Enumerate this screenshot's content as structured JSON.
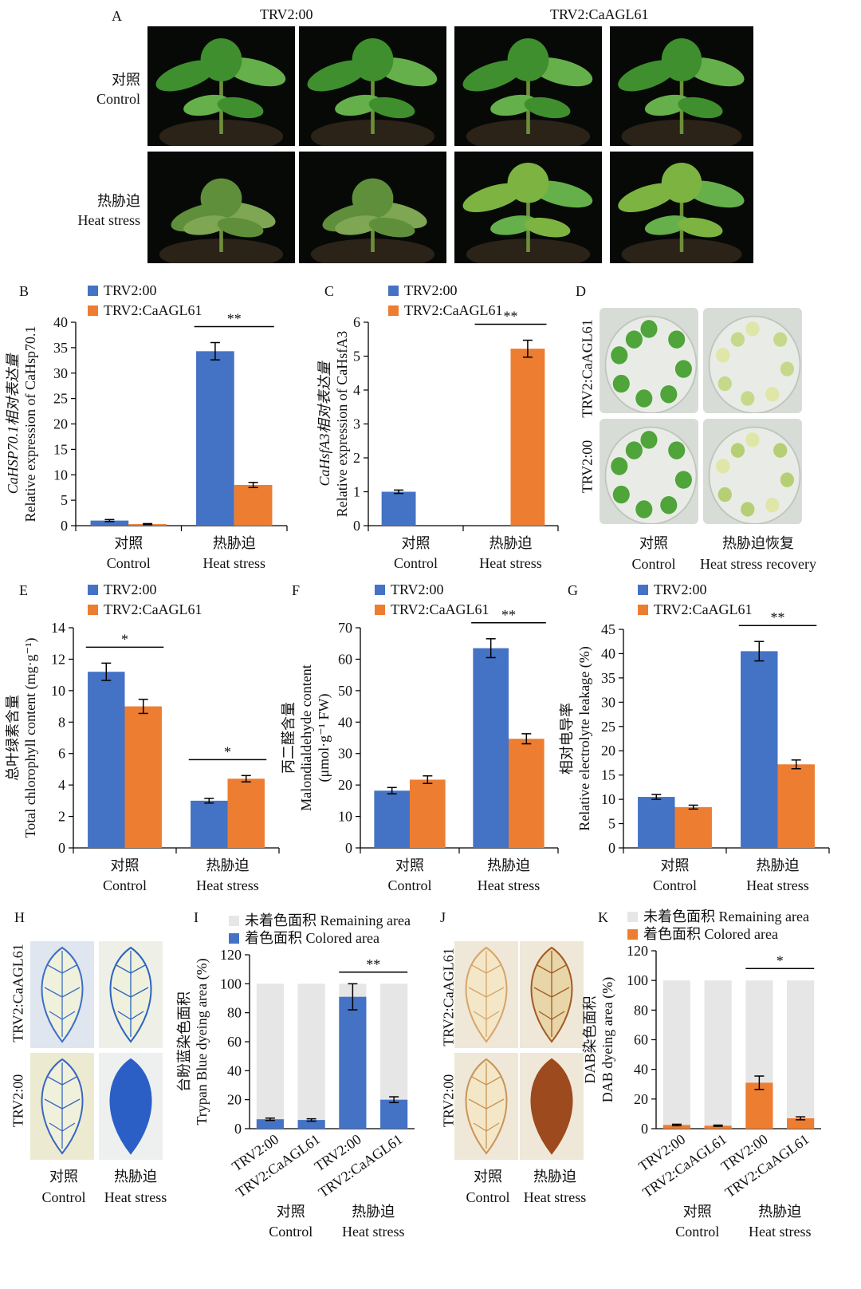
{
  "colors": {
    "blue": "#4472C4",
    "orange": "#ED7D31",
    "gray": "#E6E6E6",
    "photo_bg": "#070907"
  },
  "panel_letters": [
    "A",
    "B",
    "C",
    "D",
    "E",
    "F",
    "G",
    "H",
    "I",
    "J",
    "K"
  ],
  "panelA": {
    "col_labels": [
      "TRV2:00",
      "TRV2:CaAGL61"
    ],
    "row_labels": [
      [
        "对照",
        "Control"
      ],
      [
        "热胁迫",
        "Heat stress"
      ]
    ]
  },
  "panelD": {
    "row_labels": [
      "TRV2:CaAGL61",
      "TRV2:00"
    ],
    "col_labels": [
      [
        "对照",
        "Control"
      ],
      [
        "热胁迫恢复",
        "Heat stress recovery"
      ]
    ]
  },
  "panelH": {
    "row_labels": [
      "TRV2:CaAGL61",
      "TRV2:00"
    ],
    "col_labels": [
      [
        "对照",
        "Control"
      ],
      [
        "热胁迫",
        "Heat stress"
      ]
    ]
  },
  "panelJ": {
    "row_labels": [
      "TRV2:CaAGL61",
      "TRV2:00"
    ],
    "col_labels": [
      [
        "对照",
        "Control"
      ],
      [
        "热胁迫",
        "Heat stress"
      ]
    ]
  },
  "chart_data": [
    {
      "id": "B",
      "type": "bar",
      "categories": [
        [
          "对照",
          "Control"
        ],
        [
          "热胁迫",
          "Heat stress"
        ]
      ],
      "series": [
        {
          "name": "TRV2:00",
          "color": "#4472C4",
          "values": [
            1.0,
            34.3
          ],
          "errors": [
            0.2,
            1.7
          ]
        },
        {
          "name": "TRV2:CaAGL61",
          "color": "#ED7D31",
          "values": [
            0.3,
            8.0
          ],
          "errors": [
            0.1,
            0.5
          ]
        }
      ],
      "ylim": [
        0,
        40
      ],
      "yticks": [
        0,
        5,
        10,
        15,
        20,
        25,
        30,
        35,
        40
      ],
      "ylabel": [
        "CaHSP70.1相对表达量",
        "Relative expression of CaHsp70.1"
      ],
      "significance": [
        {
          "category": 1,
          "label": "**"
        }
      ]
    },
    {
      "id": "C",
      "type": "bar",
      "categories": [
        [
          "对照",
          "Control"
        ],
        [
          "热胁迫",
          "Heat stress"
        ]
      ],
      "series": [
        {
          "name": "TRV2:00",
          "color": "#4472C4",
          "values": [
            1.0,
            0
          ],
          "errors": [
            0.05,
            0
          ]
        },
        {
          "name": "TRV2:CaAGL61",
          "color": "#ED7D31",
          "values": [
            0,
            5.22
          ],
          "errors": [
            0,
            0.25
          ]
        }
      ],
      "ylim": [
        0,
        6
      ],
      "yticks": [
        0,
        1,
        2,
        3,
        4,
        5,
        6
      ],
      "ylabel": [
        "CaHsfA3相对表达量",
        "Relative expression of CaHsfA3"
      ],
      "significance": [
        {
          "category": 1,
          "label": "**"
        }
      ]
    },
    {
      "id": "E",
      "type": "bar",
      "categories": [
        [
          "对照",
          "Control"
        ],
        [
          "热胁迫",
          "Heat stress"
        ]
      ],
      "series": [
        {
          "name": "TRV2:00",
          "color": "#4472C4",
          "values": [
            11.2,
            3.0
          ],
          "errors": [
            0.55,
            0.15
          ]
        },
        {
          "name": "TRV2:CaAGL61",
          "color": "#ED7D31",
          "values": [
            9.0,
            4.4
          ],
          "errors": [
            0.45,
            0.2
          ]
        }
      ],
      "ylim": [
        0,
        14
      ],
      "yticks": [
        0,
        2,
        4,
        6,
        8,
        10,
        12,
        14
      ],
      "ylabel": [
        "总叶绿素含量",
        "Total chlorophyll content (mg·g⁻¹)"
      ],
      "significance": [
        {
          "category": 0,
          "label": "*"
        },
        {
          "category": 1,
          "label": "*"
        }
      ]
    },
    {
      "id": "F",
      "type": "bar",
      "categories": [
        [
          "对照",
          "Control"
        ],
        [
          "热胁迫",
          "Heat stress"
        ]
      ],
      "series": [
        {
          "name": "TRV2:00",
          "color": "#4472C4",
          "values": [
            18.2,
            63.5
          ],
          "errors": [
            1.0,
            3.0
          ]
        },
        {
          "name": "TRV2:CaAGL61",
          "color": "#ED7D31",
          "values": [
            21.7,
            34.7
          ],
          "errors": [
            1.2,
            1.6
          ]
        }
      ],
      "ylim": [
        0,
        70
      ],
      "yticks": [
        0,
        10,
        20,
        30,
        40,
        50,
        60,
        70
      ],
      "ylabel": [
        "丙二醛含量",
        "Malondialdehyde content",
        "(μmol·g⁻¹ FW)"
      ],
      "significance": [
        {
          "category": 1,
          "label": "**"
        }
      ]
    },
    {
      "id": "G",
      "type": "bar",
      "categories": [
        [
          "对照",
          "Control"
        ],
        [
          "热胁迫",
          "Heat stress"
        ]
      ],
      "series": [
        {
          "name": "TRV2:00",
          "color": "#4472C4",
          "values": [
            10.5,
            40.5
          ],
          "errors": [
            0.5,
            2.0
          ]
        },
        {
          "name": "TRV2:CaAGL61",
          "color": "#ED7D31",
          "values": [
            8.4,
            17.2
          ],
          "errors": [
            0.4,
            0.9
          ]
        }
      ],
      "ylim": [
        0,
        45
      ],
      "yticks": [
        0,
        5,
        10,
        15,
        20,
        25,
        30,
        35,
        40,
        45
      ],
      "ylabel": [
        "相对电导率",
        "Relative electrolyte leakage (%)"
      ],
      "significance": [
        {
          "category": 1,
          "label": "**"
        }
      ]
    },
    {
      "id": "I",
      "type": "stacked_bar",
      "bars": [
        "TRV2:00",
        "TRV2:CaAGL61",
        "TRV2:00",
        "TRV2:CaAGL61"
      ],
      "groups": [
        [
          "对照",
          "Control"
        ],
        [
          "热胁迫",
          "Heat stress"
        ]
      ],
      "series": [
        {
          "name": "未着色面积 Remaining area",
          "color": "#E6E6E6"
        },
        {
          "name": "着色面积 Colored area",
          "color": "#4472C4",
          "values": [
            6.5,
            6.0,
            91.0,
            20.0
          ],
          "errors": [
            0.8,
            0.8,
            9.0,
            2.0
          ]
        }
      ],
      "ylim": [
        0,
        120
      ],
      "yticks": [
        0,
        20,
        40,
        60,
        80,
        100,
        120
      ],
      "ylabel": [
        "台盼蓝染色面积",
        "Trypan Blue dyeing area (%)"
      ],
      "significance": [
        {
          "bars": [
            2,
            3
          ],
          "label": "**"
        }
      ]
    },
    {
      "id": "K",
      "type": "stacked_bar",
      "bars": [
        "TRV2:00",
        "TRV2:CaAGL61",
        "TRV2:00",
        "TRV2:CaAGL61"
      ],
      "groups": [
        [
          "对照",
          "Control"
        ],
        [
          "热胁迫",
          "Heat stress"
        ]
      ],
      "series": [
        {
          "name": "未着色面积 Remaining area",
          "color": "#E6E6E6"
        },
        {
          "name": "着色面积 Colored area",
          "color": "#ED7D31",
          "values": [
            2.5,
            2.0,
            31.0,
            7.0
          ],
          "errors": [
            0.5,
            0.4,
            4.5,
            1.0
          ]
        }
      ],
      "ylim": [
        0,
        120
      ],
      "yticks": [
        0,
        20,
        40,
        60,
        80,
        100,
        120
      ],
      "ylabel": [
        "DAB染色面积",
        "DAB dyeing area (%)"
      ],
      "significance": [
        {
          "bars": [
            2,
            3
          ],
          "label": "*"
        }
      ]
    }
  ]
}
